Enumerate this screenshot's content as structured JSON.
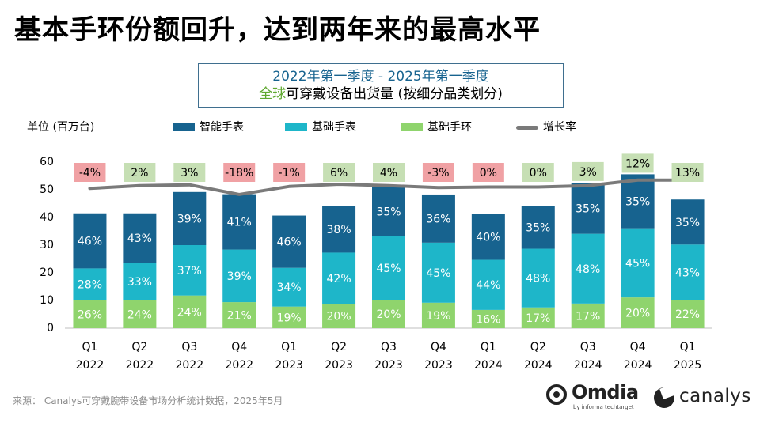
{
  "title": "基本手环份额回升，达到两年来的最高水平",
  "subtitle": {
    "line1": "2022年第一季度 - 2025年第一季度",
    "line2_highlight": "全球",
    "line2_rest": "可穿戴设备出货量 (按细分品类划分)"
  },
  "unit_label": "单位 (百万台)",
  "legend": [
    {
      "name": "智能手表",
      "color": "#17638f",
      "kind": "bar"
    },
    {
      "name": "基础手表",
      "color": "#1eb6c9",
      "kind": "bar"
    },
    {
      "name": "基础手环",
      "color": "#8fd46d",
      "kind": "bar"
    },
    {
      "name": "增长率",
      "color": "#7a7a7a",
      "kind": "line"
    }
  ],
  "chart_data": {
    "type": "bar",
    "stacked": true,
    "ylim": [
      0,
      60
    ],
    "yticks": [
      0,
      10,
      20,
      30,
      40,
      50,
      60
    ],
    "grid": false,
    "categories": [
      [
        "Q1",
        "2022"
      ],
      [
        "Q2",
        "2022"
      ],
      [
        "Q3",
        "2022"
      ],
      [
        "Q4",
        "2022"
      ],
      [
        "Q1",
        "2023"
      ],
      [
        "Q2",
        "2023"
      ],
      [
        "Q3",
        "2023"
      ],
      [
        "Q4",
        "2023"
      ],
      [
        "Q1",
        "2024"
      ],
      [
        "Q2",
        "2024"
      ],
      [
        "Q3",
        "2024"
      ],
      [
        "Q4",
        "2024"
      ],
      [
        "Q1",
        "2025"
      ]
    ],
    "totals": [
      41.5,
      41.5,
      49.2,
      48.8,
      41.1,
      44.0,
      51.2,
      48.3,
      41.2,
      44.1,
      52.6,
      55.6,
      46.5
    ],
    "series": [
      {
        "name": "基础手环",
        "color": "#8fd46d",
        "values": [
          10.0,
          10.0,
          11.8,
          9.4,
          7.8,
          8.8,
          10.2,
          9.2,
          6.6,
          7.5,
          8.9,
          11.1,
          10.2
        ],
        "labels": [
          "26%",
          "24%",
          "24%",
          "21%",
          "19%",
          "20%",
          "20%",
          "19%",
          "16%",
          "17%",
          "17%",
          "20%",
          "22%"
        ]
      },
      {
        "name": "基础手表",
        "color": "#1eb6c9",
        "values": [
          11.6,
          13.7,
          18.2,
          19.0,
          14.0,
          18.5,
          23.0,
          21.7,
          18.1,
          21.2,
          25.2,
          25.0,
          20.0
        ],
        "labels": [
          "28%",
          "33%",
          "37%",
          "39%",
          "34%",
          "42%",
          "45%",
          "45%",
          "44%",
          "48%",
          "48%",
          "45%",
          "43%"
        ]
      },
      {
        "name": "智能手表",
        "color": "#17638f",
        "values": [
          19.9,
          17.8,
          19.2,
          20.0,
          18.9,
          16.7,
          17.9,
          17.4,
          16.5,
          15.4,
          18.4,
          19.5,
          16.3
        ],
        "labels": [
          "46%",
          "43%",
          "39%",
          "41%",
          "46%",
          "38%",
          "35%",
          "36%",
          "40%",
          "35%",
          "35%",
          "35%",
          "35%"
        ]
      }
    ],
    "growth": {
      "name": "增长率",
      "values": [
        -4,
        2,
        3,
        -18,
        -1,
        6,
        4,
        -3,
        0,
        0,
        3,
        12,
        13
      ],
      "labels": [
        "-4%",
        "2%",
        "3%",
        "-18%",
        "-1%",
        "6%",
        "4%",
        "-3%",
        "0%",
        "0%",
        "3%",
        "12%",
        "13%"
      ],
      "line_level": [
        50.5,
        51.5,
        51.8,
        48.3,
        51.2,
        52.0,
        51.5,
        50.8,
        51.0,
        51.0,
        51.5,
        53.5,
        53.5
      ],
      "positive_color": "#c6dfb4",
      "negative_color": "#f0a1a4",
      "line_color": "#7a7a7a"
    }
  },
  "source": "来源： Canalys可穿戴腕带设备市场分析统计数据，2025年5月",
  "logos": {
    "omdia": "Omdia",
    "omdia_sub": "by informa techtarget",
    "canalys": "canalys"
  }
}
